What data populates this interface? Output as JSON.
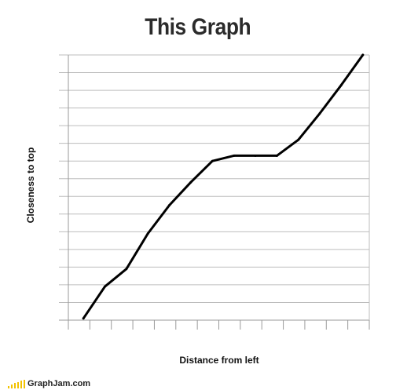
{
  "chart_data": {
    "type": "line",
    "title": "This Graph",
    "xlabel": "Distance from left",
    "ylabel": "Closeness to top",
    "xlim": [
      0,
      14
    ],
    "ylim": [
      0,
      15
    ],
    "grid": true,
    "x": [
      0.7,
      1.7,
      2.7,
      3.7,
      4.7,
      5.7,
      6.7,
      7.7,
      8.7,
      9.7,
      10.7,
      11.7,
      12.7,
      13.7
    ],
    "series": [
      {
        "name": "",
        "color": "#000000",
        "values": [
          0.1,
          1.9,
          2.9,
          4.9,
          6.5,
          7.8,
          9.0,
          9.3,
          9.3,
          9.3,
          10.2,
          11.7,
          13.3,
          15.0
        ]
      }
    ]
  },
  "footer": {
    "logo_text": "GraphJam.com",
    "logo_icon": "bar-chart-logo-icon",
    "logo_bar_colors": [
      "#f2c200",
      "#f2c200",
      "#f2c200",
      "#f2c200",
      "#f2c200",
      "#f2c200"
    ],
    "logo_bar_levels": [
      0.3,
      0.45,
      0.6,
      0.75,
      0.9,
      1.0
    ]
  }
}
